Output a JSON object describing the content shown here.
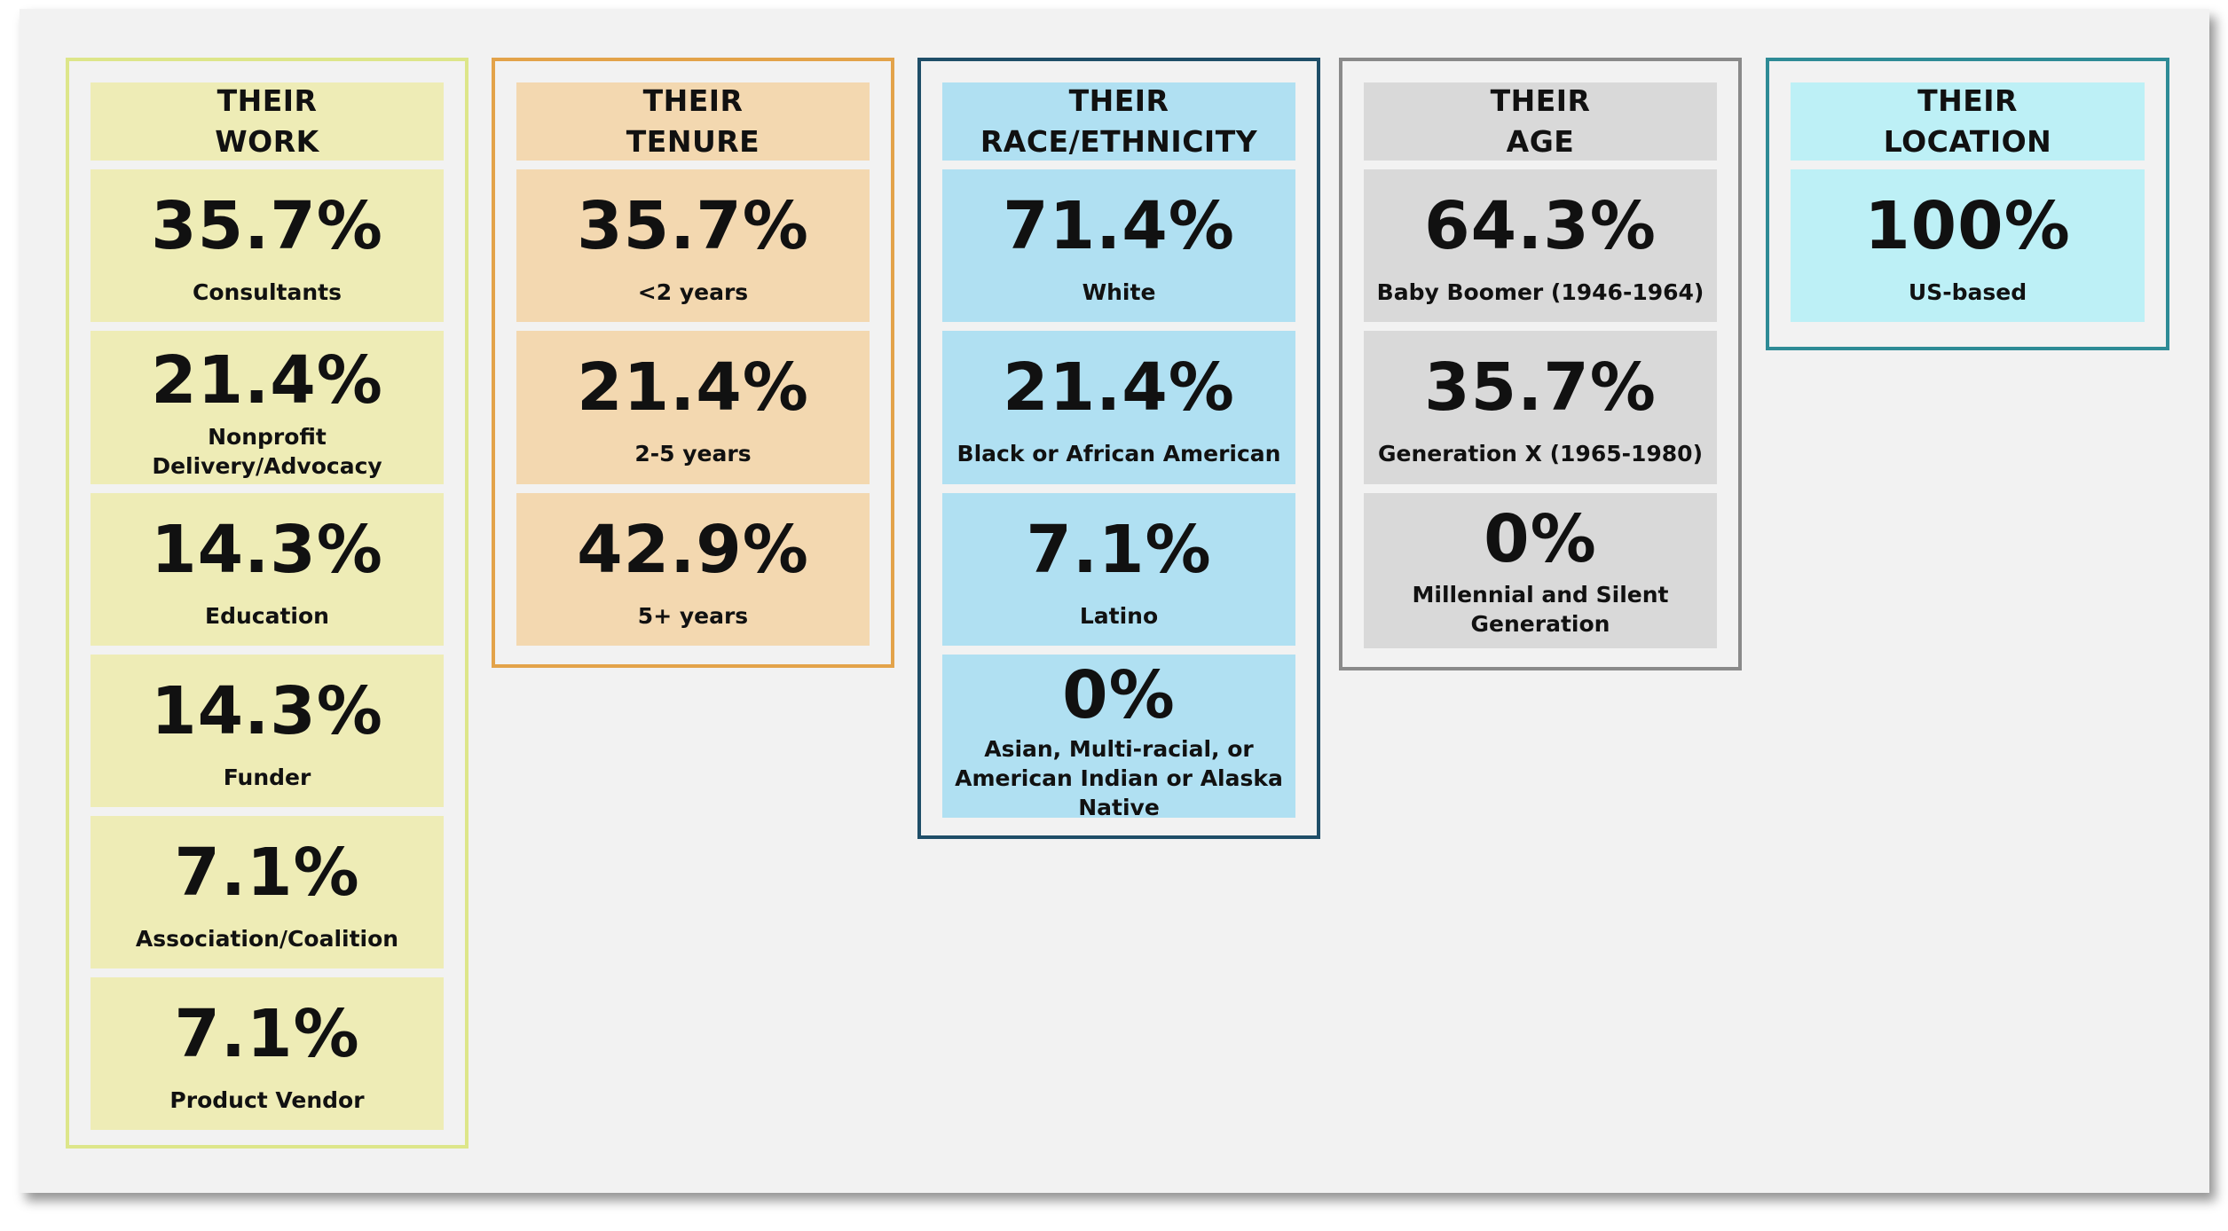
{
  "colors": {
    "panel_bg": "#f2f2f2",
    "work": {
      "border": "#dde68a",
      "fill": "#eeecb6"
    },
    "tenure": {
      "border": "#e3a34a",
      "fill": "#f3d8b0"
    },
    "race": {
      "border": "#1f4e68",
      "fill": "#b0e0f2"
    },
    "age": {
      "border": "#8a8a8a",
      "fill": "#d9d9d9"
    },
    "location": {
      "border": "#2e8b96",
      "fill": "#bdf0f6"
    }
  },
  "groups": {
    "work": {
      "header": [
        "THEIR",
        "WORK"
      ],
      "items": [
        {
          "pct": "35.7%",
          "label": "Consultants"
        },
        {
          "pct": "21.4%",
          "label": "Nonprofit\nDelivery/Advocacy"
        },
        {
          "pct": "14.3%",
          "label": "Education"
        },
        {
          "pct": "14.3%",
          "label": "Funder"
        },
        {
          "pct": "7.1%",
          "label": "Association/Coalition"
        },
        {
          "pct": "7.1%",
          "label": "Product Vendor"
        }
      ]
    },
    "tenure": {
      "header": [
        "THEIR",
        "TENURE"
      ],
      "items": [
        {
          "pct": "35.7%",
          "label": "<2 years"
        },
        {
          "pct": "21.4%",
          "label": "2-5 years"
        },
        {
          "pct": "42.9%",
          "label": "5+ years"
        }
      ]
    },
    "race": {
      "header": [
        "THEIR",
        "RACE/ETHNICITY"
      ],
      "items": [
        {
          "pct": "71.4%",
          "label": "White"
        },
        {
          "pct": "21.4%",
          "label": "Black or African American"
        },
        {
          "pct": "7.1%",
          "label": "Latino"
        },
        {
          "pct": "0%",
          "label": "Asian, Multi-racial, or\nAmerican Indian or Alaska\nNative"
        }
      ]
    },
    "age": {
      "header": [
        "THEIR",
        "AGE"
      ],
      "items": [
        {
          "pct": "64.3%",
          "label": "Baby Boomer (1946-1964)"
        },
        {
          "pct": "35.7%",
          "label": "Generation X (1965-1980)"
        },
        {
          "pct": "0%",
          "label": "Millennial and Silent\nGeneration"
        }
      ]
    },
    "location": {
      "header": [
        "THEIR",
        "LOCATION"
      ],
      "items": [
        {
          "pct": "100%",
          "label": "US-based"
        }
      ]
    }
  }
}
